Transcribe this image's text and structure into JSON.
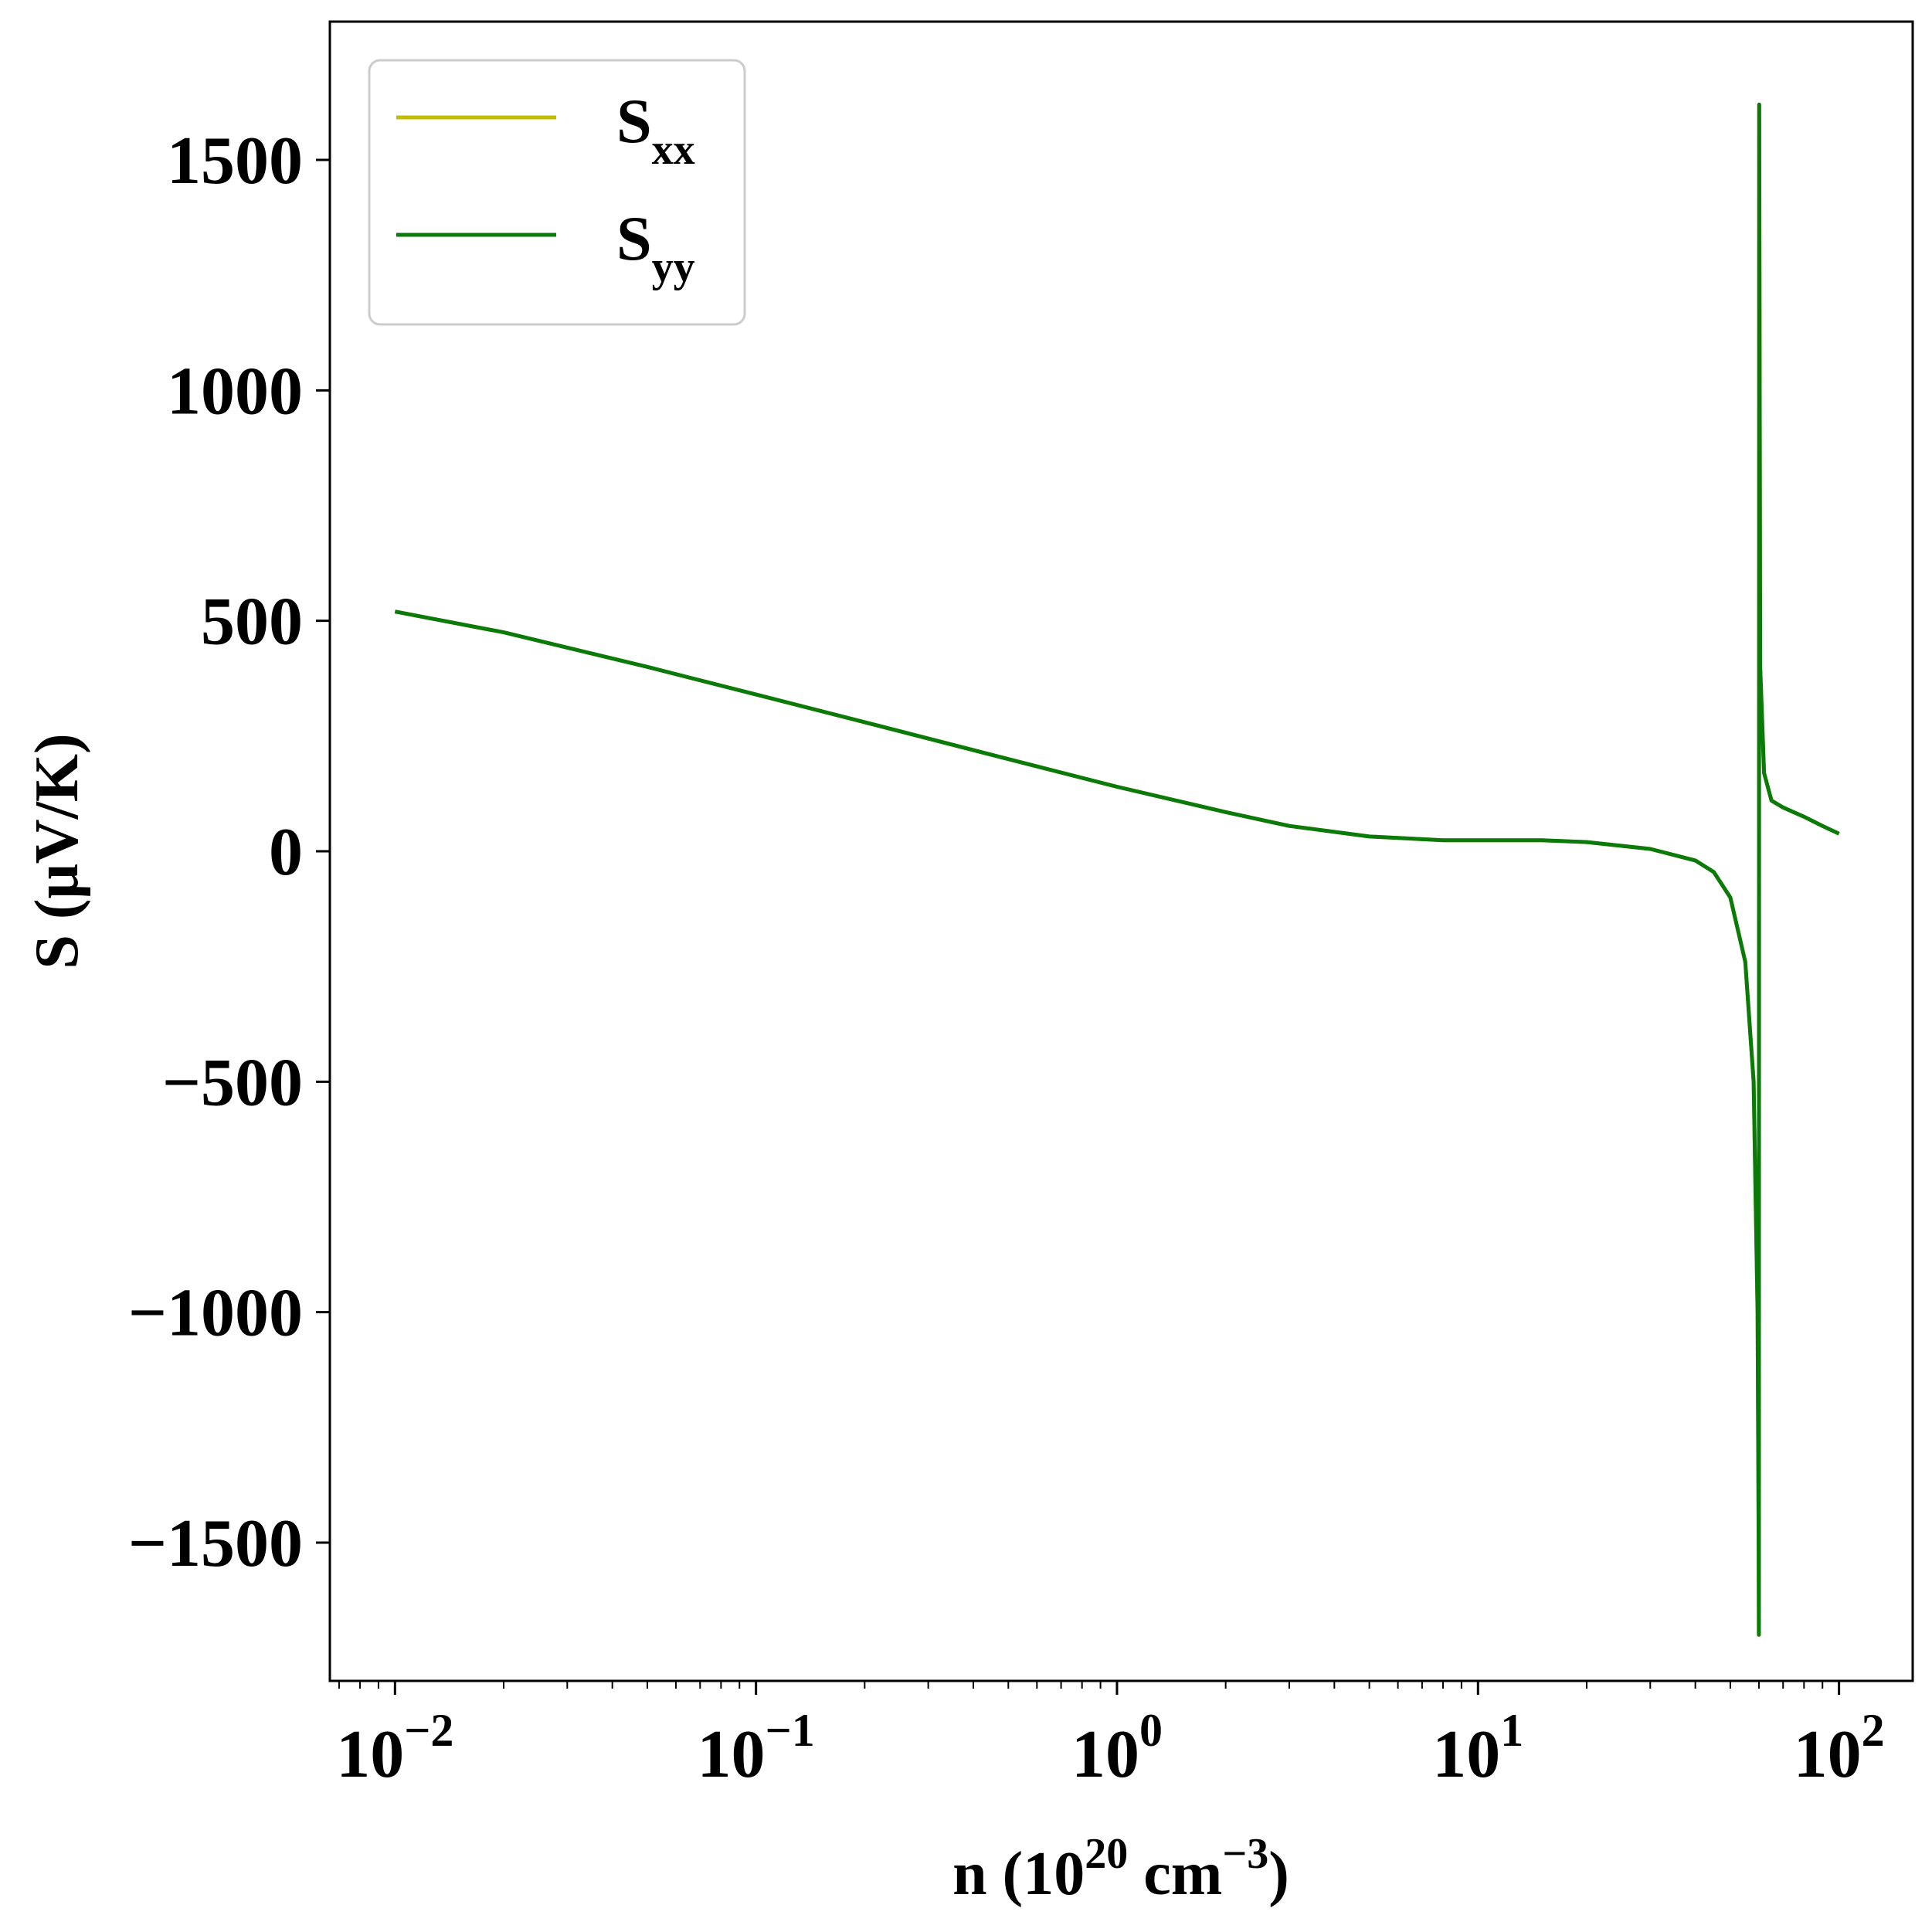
{
  "chart_data": {
    "type": "line",
    "title": "",
    "xscale": "log",
    "xlim": [
      0.0066,
      160
    ],
    "ylim": [
      -1800,
      1800
    ],
    "xlabel": {
      "base": "n (10",
      "sup1": "20",
      "mid": " cm",
      "sup2": "−3",
      "end": ")"
    },
    "ylabel": "S (μV/K)",
    "grid": false,
    "legend_position": "top-left",
    "x_major_ticks": [
      {
        "value": 0.01,
        "base": "10",
        "exp": "−2"
      },
      {
        "value": 0.1,
        "base": "10",
        "exp": "−1"
      },
      {
        "value": 1,
        "base": "10",
        "exp": "0"
      },
      {
        "value": 10,
        "base": "10",
        "exp": "1"
      },
      {
        "value": 100,
        "base": "10",
        "exp": "2"
      }
    ],
    "y_ticks": [
      {
        "value": 1500,
        "label": "1500"
      },
      {
        "value": 1000,
        "label": "1000"
      },
      {
        "value": 500,
        "label": "500"
      },
      {
        "value": 0,
        "label": "0"
      },
      {
        "value": -500,
        "label": "−500"
      },
      {
        "value": -1000,
        "label": "−1000"
      },
      {
        "value": -1500,
        "label": "−1500"
      }
    ],
    "series": [
      {
        "name": {
          "base": "S",
          "sub": "xx"
        },
        "color": "#bfbf00",
        "x": [
          0.01,
          0.02,
          0.05,
          0.1,
          0.2,
          0.5,
          1,
          2,
          3,
          5,
          8,
          10,
          15,
          20,
          30,
          40,
          45,
          50,
          55,
          58,
          59.5,
          59.9,
          60,
          60.1,
          60.5,
          62,
          65,
          70,
          80,
          90,
          100
        ],
        "y": [
          520,
          475,
          400,
          340,
          280,
          200,
          140,
          85,
          55,
          32,
          24,
          24,
          24,
          20,
          5,
          -20,
          -45,
          -100,
          -240,
          -500,
          -1000,
          -1500,
          -1700,
          1620,
          400,
          170,
          110,
          95,
          75,
          55,
          38
        ]
      },
      {
        "name": {
          "base": "S",
          "sub": "yy"
        },
        "color": "#0a7a0a",
        "x": [
          0.01,
          0.02,
          0.05,
          0.1,
          0.2,
          0.5,
          1,
          2,
          3,
          5,
          8,
          10,
          15,
          20,
          30,
          40,
          45,
          50,
          55,
          58,
          59.5,
          59.9,
          60,
          60.1,
          60.5,
          62,
          65,
          70,
          80,
          90,
          100
        ],
        "y": [
          520,
          475,
          400,
          340,
          280,
          200,
          140,
          85,
          55,
          32,
          24,
          24,
          24,
          20,
          5,
          -20,
          -45,
          -100,
          -240,
          -500,
          -1000,
          -1500,
          -1700,
          1620,
          400,
          170,
          110,
          95,
          75,
          55,
          38
        ]
      }
    ]
  }
}
